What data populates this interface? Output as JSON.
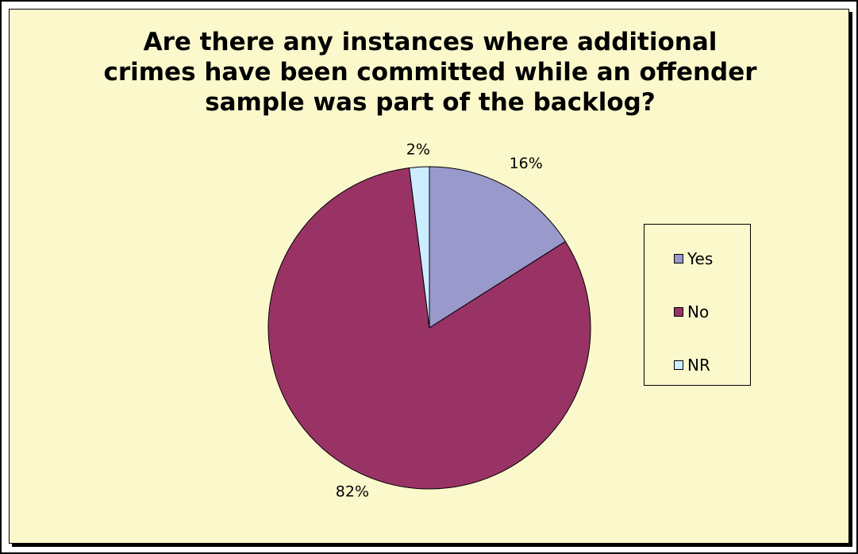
{
  "chart_data": {
    "type": "pie",
    "title": "Are there any instances where additional\ncrimes have been committed while an offender\nsample was part of the backlog?",
    "categories": [
      "Yes",
      "No",
      "NR"
    ],
    "values": [
      16,
      82,
      2
    ],
    "value_labels": [
      "16%",
      "82%",
      "2%"
    ],
    "colors": [
      "#9999cc",
      "#993366",
      "#ccecff"
    ],
    "legend_position": "right",
    "start_angle": "12 o'clock",
    "direction": "clockwise"
  }
}
